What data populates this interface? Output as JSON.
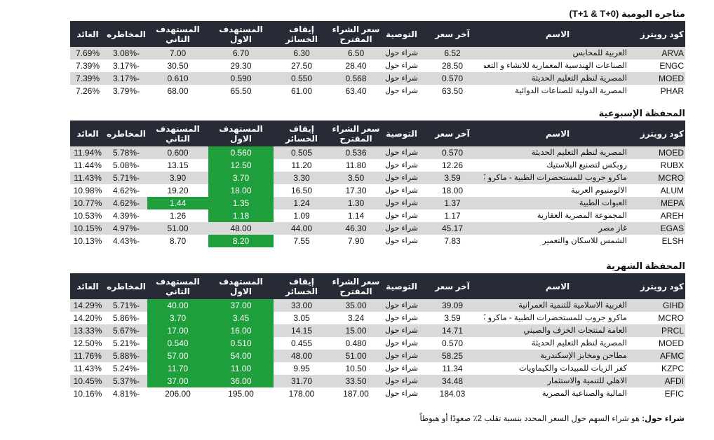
{
  "headers": {
    "code": "كود رويترز",
    "name": "الاسم",
    "last": "آخر سعر",
    "rec": "التوصية",
    "buy": "سعر الشراء المقترح",
    "stop": "إيقاف الخسائر",
    "t1": "المستهدف الاول",
    "t2": "المستهدف التاني",
    "risk": "المخاطره",
    "ret": "العائد"
  },
  "tables": [
    {
      "title": "متاجره اليومية (T+1 & T+0)",
      "rows": [
        {
          "code": "ARVA",
          "name": "العربية للمحابس",
          "last": "6.52",
          "rec": "شراء حول",
          "buy": "6.50",
          "stop": "6.30",
          "t1": "6.70",
          "t2": "7.00",
          "risk": "-3.08%",
          "ret": "7.69%",
          "hl": []
        },
        {
          "code": "ENGC",
          "name": "الصناعات الهندسية المعمارية للانشاء و التعمير",
          "last": "28.50",
          "rec": "شراء حول",
          "buy": "28.40",
          "stop": "27.50",
          "t1": "29.30",
          "t2": "30.50",
          "risk": "-3.17%",
          "ret": "7.39%",
          "hl": []
        },
        {
          "code": "MOED",
          "name": "المصرية لنظم التعليم الحديثة",
          "last": "0.570",
          "rec": "شراء حول",
          "buy": "0.568",
          "stop": "0.550",
          "t1": "0.590",
          "t2": "0.610",
          "risk": "-3.17%",
          "ret": "7.39%",
          "hl": []
        },
        {
          "code": "PHAR",
          "name": "المصرية الدولية للصناعات الدوائية",
          "last": "63.50",
          "rec": "شراء حول",
          "buy": "63.40",
          "stop": "61.00",
          "t1": "65.50",
          "t2": "68.00",
          "risk": "-3.79%",
          "ret": "7.26%",
          "hl": []
        }
      ]
    },
    {
      "title": "المحفظة الإسبوعية",
      "rows": [
        {
          "code": "MOED",
          "name": "المصرية لنظم التعليم الحديثة",
          "last": "0.570",
          "rec": "شراء حول",
          "buy": "0.536",
          "stop": "0.505",
          "t1": "0.560",
          "t2": "0.600",
          "risk": "-5.78%",
          "ret": "11.94%",
          "hl": [
            "t1"
          ]
        },
        {
          "code": "RUBX",
          "name": "روبكس لتصنيع البلاستيك",
          "last": "12.26",
          "rec": "شراء حول",
          "buy": "11.80",
          "stop": "11.20",
          "t1": "12.50",
          "t2": "13.15",
          "risk": "-5.08%",
          "ret": "11.44%",
          "hl": [
            "t1"
          ]
        },
        {
          "code": "MCRO",
          "name": "ماكرو جروب للمستحضرات الطبية - ماكرو كابيتال",
          "last": "3.59",
          "rec": "شراء حول",
          "buy": "3.50",
          "stop": "3.30",
          "t1": "3.70",
          "t2": "3.90",
          "risk": "-5.71%",
          "ret": "11.43%",
          "hl": [
            "t1"
          ]
        },
        {
          "code": "ALUM",
          "name": "الالومنيوم العربية",
          "last": "18.00",
          "rec": "شراء حول",
          "buy": "17.30",
          "stop": "16.50",
          "t1": "18.00",
          "t2": "19.20",
          "risk": "-4.62%",
          "ret": "10.98%",
          "hl": [
            "t1"
          ]
        },
        {
          "code": "MEPA",
          "name": "العبوات الطبية",
          "last": "1.37",
          "rec": "شراء حول",
          "buy": "1.30",
          "stop": "1.24",
          "t1": "1.35",
          "t2": "1.44",
          "risk": "-4.62%",
          "ret": "10.77%",
          "hl": [
            "t1",
            "t2"
          ]
        },
        {
          "code": "AREH",
          "name": "المجموعة المصرية العقارية",
          "last": "1.17",
          "rec": "شراء حول",
          "buy": "1.14",
          "stop": "1.09",
          "t1": "1.18",
          "t2": "1.26",
          "risk": "-4.39%",
          "ret": "10.53%",
          "hl": [
            "t1"
          ]
        },
        {
          "code": "EGAS",
          "name": "غاز مصر",
          "last": "45.17",
          "rec": "شراء حول",
          "buy": "46.30",
          "stop": "44.00",
          "t1": "48.00",
          "t2": "51.00",
          "risk": "-4.97%",
          "ret": "10.15%",
          "hl": []
        },
        {
          "code": "ELSH",
          "name": "الشمس للاسكان والتعمير",
          "last": "7.83",
          "rec": "شراء حول",
          "buy": "7.90",
          "stop": "7.55",
          "t1": "8.20",
          "t2": "8.70",
          "risk": "-4.43%",
          "ret": "10.13%",
          "hl": [
            "t1"
          ]
        }
      ]
    },
    {
      "title": "المحفظة الشهرية",
      "rows": [
        {
          "code": "GIHD",
          "name": "الغربية الاسلامية للتنمية العمرانية",
          "last": "39.09",
          "rec": "شراء حول",
          "buy": "35.00",
          "stop": "33.00",
          "t1": "37.00",
          "t2": "40.00",
          "risk": "-5.71%",
          "ret": "14.29%",
          "hl": [
            "t1",
            "t2"
          ]
        },
        {
          "code": "MCRO",
          "name": "ماكرو جروب للمستحضرات الطبية - ماكرو كابيتال",
          "last": "3.59",
          "rec": "شراء حول",
          "buy": "3.24",
          "stop": "3.05",
          "t1": "3.45",
          "t2": "3.70",
          "risk": "-5.86%",
          "ret": "14.20%",
          "hl": [
            "t1",
            "t2"
          ]
        },
        {
          "code": "PRCL",
          "name": "العامة لمنتجات الخزف والصيني",
          "last": "14.71",
          "rec": "شراء حول",
          "buy": "15.00",
          "stop": "14.15",
          "t1": "16.00",
          "t2": "17.00",
          "risk": "-5.67%",
          "ret": "13.33%",
          "hl": [
            "t1",
            "t2"
          ]
        },
        {
          "code": "MOED",
          "name": "المصرية لنظم التعليم الحديثة",
          "last": "0.570",
          "rec": "شراء حول",
          "buy": "0.480",
          "stop": "0.455",
          "t1": "0.510",
          "t2": "0.540",
          "risk": "-5.21%",
          "ret": "12.50%",
          "hl": [
            "t1",
            "t2"
          ]
        },
        {
          "code": "AFMC",
          "name": "مطاحن ومخابز الإسكندرية",
          "last": "58.25",
          "rec": "شراء حول",
          "buy": "51.00",
          "stop": "48.00",
          "t1": "54.00",
          "t2": "57.00",
          "risk": "-5.88%",
          "ret": "11.76%",
          "hl": [
            "t1",
            "t2"
          ]
        },
        {
          "code": "KZPC",
          "name": "كفر الزيات للمبيدات والكيماويات",
          "last": "11.34",
          "rec": "شراء حول",
          "buy": "10.50",
          "stop": "9.95",
          "t1": "11.00",
          "t2": "11.70",
          "risk": "-5.24%",
          "ret": "11.43%",
          "hl": [
            "t1",
            "t2"
          ]
        },
        {
          "code": "AFDI",
          "name": "الاهلي للتنمية والاستثمار",
          "last": "34.48",
          "rec": "شراء حول",
          "buy": "33.50",
          "stop": "31.70",
          "t1": "36.00",
          "t2": "37.00",
          "risk": "-5.37%",
          "ret": "10.45%",
          "hl": [
            "t1",
            "t2"
          ]
        },
        {
          "code": "EFIC",
          "name": "المالية والصناعية المصرية",
          "last": "184.03",
          "rec": "شراء حول",
          "buy": "187.00",
          "stop": "178.00",
          "t1": "195.00",
          "t2": "206.00",
          "risk": "-4.81%",
          "ret": "10.16%",
          "hl": []
        }
      ]
    }
  ],
  "footer": {
    "term": "شراء حول:",
    "definition": " هو شراء السهم حول السعر المحدد بنسبة تقلب 2٪ صعودًا أو هبوطاً"
  }
}
